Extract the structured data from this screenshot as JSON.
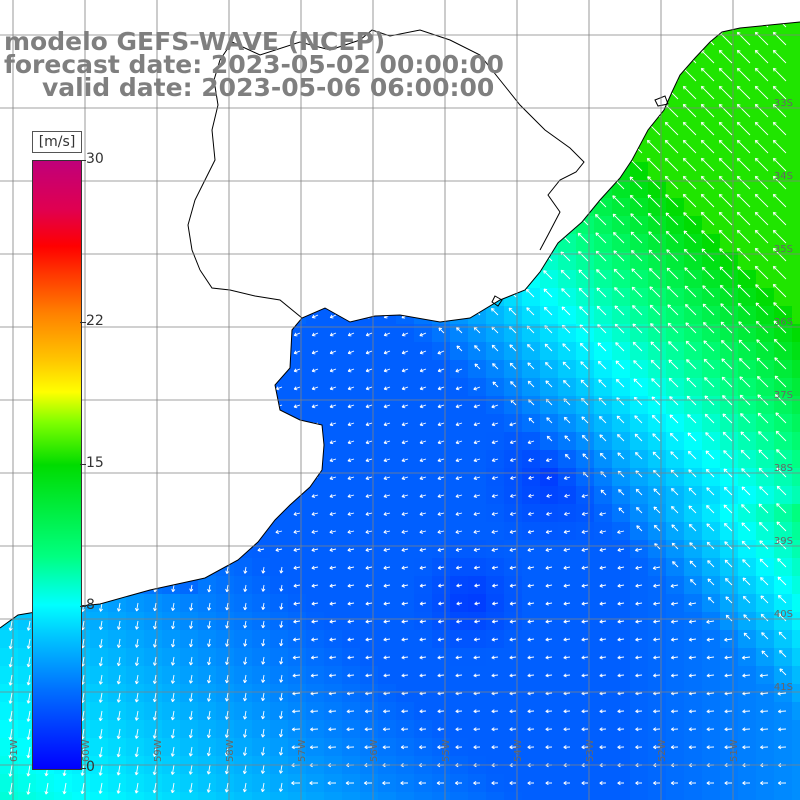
{
  "title": {
    "line1": "modelo GEFS-WAVE (NCEP)",
    "line2": "forecast date: 2023-05-02 00:00:00",
    "line3": "valid date: 2023-05-06 06:00:00"
  },
  "colorbar": {
    "unit": "[m/s]",
    "ticks": [
      {
        "label": "30",
        "value": 30
      },
      {
        "label": "22",
        "value": 22
      },
      {
        "label": "15",
        "value": 15
      },
      {
        "label": "8",
        "value": 8
      },
      {
        "label": "0",
        "value": 0
      }
    ],
    "min": 0,
    "max": 30
  },
  "map": {
    "lon_labels": [
      "61W",
      "60W",
      "59W",
      "58W",
      "57W",
      "56W",
      "55W",
      "54W",
      "53W",
      "52W",
      "51W"
    ],
    "lat_labels": [
      "33S",
      "34S",
      "35S",
      "36S",
      "37S",
      "38S",
      "39S",
      "40S",
      "41S"
    ],
    "land_color": "#ffffff",
    "grid_color": "#808080",
    "coast_color": "#000000",
    "arrow_color": "#ffffff"
  }
}
